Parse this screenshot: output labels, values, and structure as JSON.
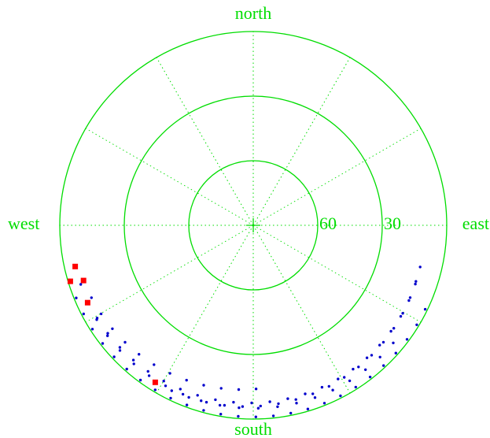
{
  "chart_data": {
    "type": "scatter",
    "subtype": "polar sky plot (azimuth / elevation)",
    "directions": {
      "north": "north",
      "south": "south",
      "east": "east",
      "west": "west"
    },
    "elevation_rings": [
      0,
      30,
      60
    ],
    "ring_labels": [
      "60",
      "30"
    ],
    "azimuth_spokes_deg": [
      0,
      30,
      60,
      90,
      120,
      150,
      180,
      210,
      240,
      270,
      300,
      330
    ],
    "grid": true,
    "colors": {
      "grid": "#00dd00",
      "track": "#0000cc",
      "start_marker": "#ff0000",
      "background": "#ffffff"
    },
    "tracks": [
      {
        "start": [
          252,
          7
        ],
        "end": [
          179,
          14
        ],
        "az_step": -6.1,
        "el_step": 0.47
      },
      {
        "start": [
          257,
          5
        ],
        "end": [
          104,
          10
        ],
        "az_step": -6.0,
        "el_step": 0.2
      },
      {
        "start": [
          253,
          1
        ],
        "end": [
          116,
          1
        ],
        "az_step": -5.3,
        "el_step": 0.0
      },
      {
        "start": [
          245,
          5
        ],
        "end": [
          130,
          5
        ],
        "az_step": -6.0,
        "el_step": 0.0
      },
      {
        "start": [
          212,
          4
        ],
        "end": [
          109,
          10
        ],
        "az_step": -5.8,
        "el_step": 0.17
      }
    ]
  }
}
